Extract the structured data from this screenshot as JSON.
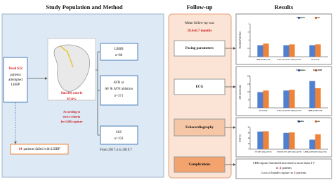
{
  "study": {
    "title": "Study Population and Method",
    "total": {
      "headline": "Total 632",
      "lines": [
        "patients",
        "attempted",
        "LBBP"
      ]
    },
    "success": {
      "lines": [
        "Success rate is",
        "97.8%"
      ]
    },
    "criteria": [
      "According to",
      "strict criteria",
      "for LBB capture"
    ],
    "groups": [
      {
        "lines": [
          "LBBB",
          "n=88"
        ]
      },
      {
        "lines": [
          "AVB or",
          "AF & AVN ablation",
          "n=371"
        ]
      },
      {
        "lines": [
          "SSS",
          "n=159"
        ]
      }
    ],
    "failed": {
      "count": 14,
      "text": "patients failed with LBBP"
    },
    "period": "From 2017.4 to 2019.7"
  },
  "followup": {
    "title": "Follow-up",
    "mean": [
      "Mean follow-up was",
      "18.6±6.7 months"
    ],
    "steps": [
      "Pacing parameters",
      "ECG",
      "Echocardiography",
      "Complications"
    ]
  },
  "results": {
    "title": "Results",
    "charts": [
      {
        "type": "bar",
        "ylabel": "Threshold (V@0.4ms)",
        "categories": [
          "LBBB and HF (n=84)",
          "AVB or AF and AVN ablation (n=357)",
          "SSS (n=158)"
        ],
        "series": [
          {
            "name": "At implant",
            "color": "#4f7fd0",
            "values": [
              0.7,
              0.7,
              0.7
            ]
          },
          {
            "name": "1 year",
            "color": "#f0833a",
            "values": [
              0.8,
              0.75,
              0.75
            ]
          }
        ],
        "ylim": [
          0,
          2
        ],
        "yticks": [
          0,
          0.5,
          1,
          1.5,
          2
        ]
      },
      {
        "type": "bar",
        "ylabel": "QRS duration (ms)",
        "categories": [
          "SSS (n=159)",
          "AVB or AF and AVN ablation (n=371)",
          "LBBB and HF (n=88)"
        ],
        "series": [
          {
            "name": "Pre-implant",
            "color": "#4f7fd0",
            "values": [
              100,
              110,
              170
            ]
          },
          {
            "name": "Post-LBBP",
            "color": "#f0833a",
            "values": [
              110,
              115,
              125
            ]
          }
        ],
        "ylim": [
          0,
          200
        ],
        "yticks": [
          0,
          50,
          100,
          150,
          200
        ]
      },
      {
        "type": "bar",
        "ylabel": "LVEF (%)",
        "categories": [
          "SSS QRS<120ms (n=159)",
          "AVB/AF&AVNA QRS<120ms (n=293)",
          "LBBB and HF QRS>120ms (n=82)"
        ],
        "series": [
          {
            "name": "Baseline",
            "color": "#4f7fd0",
            "values": [
              65,
              60,
              35
            ]
          },
          {
            "name": "1 year",
            "color": "#f0833a",
            "values": [
              66,
              62,
              55
            ]
          }
        ],
        "ylim": [
          0,
          80
        ],
        "yticks": [
          0,
          20,
          40,
          60,
          80
        ]
      }
    ],
    "complications": {
      "line1": "LBB capture threshold increased to more than 3 V",
      "line2": {
        "pre": "in",
        "count": 4,
        "post": "patients"
      },
      "line3": {
        "pre": "Loss of bundle capture in",
        "count": 2,
        "post": "patients"
      }
    }
  }
}
